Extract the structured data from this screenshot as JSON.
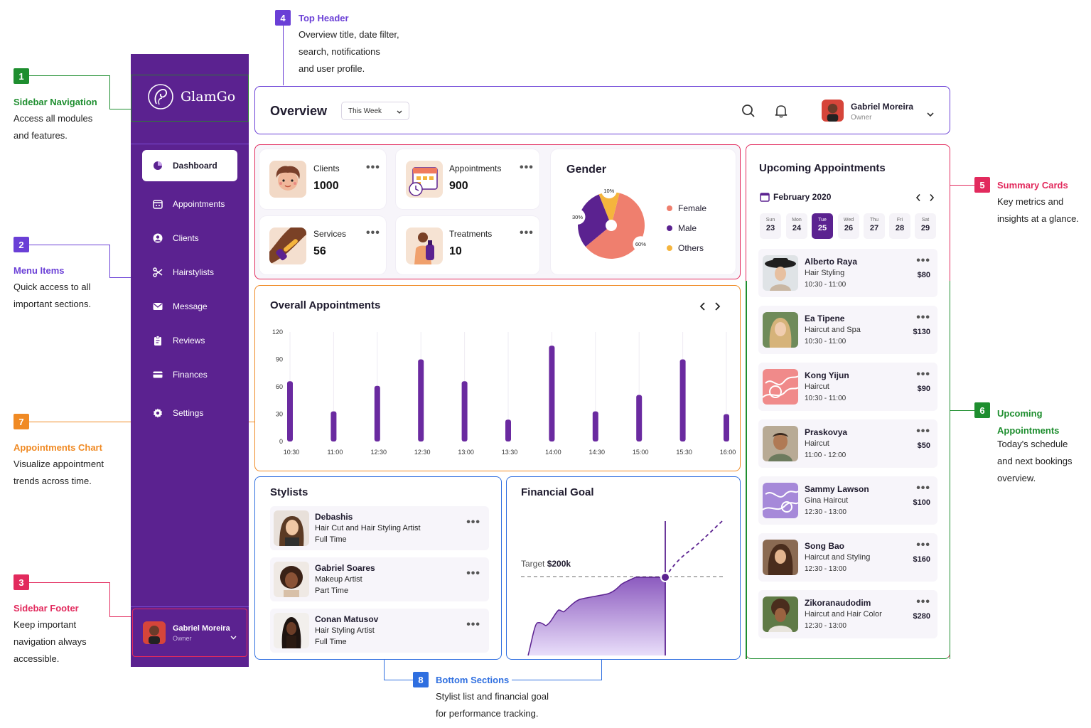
{
  "annotations": [
    {
      "num": "1",
      "title": "Sidebar Navigation",
      "lines": [
        "Access all modules",
        "and features."
      ],
      "color": "#1e8e2f"
    },
    {
      "num": "2",
      "title": "Menu Items",
      "lines": [
        "Quick access to all",
        "important sections."
      ],
      "color": "#6a3fd6"
    },
    {
      "num": "3",
      "title": "Sidebar Footer",
      "lines": [
        "Keep important",
        "navigation always",
        "accessible."
      ],
      "color": "#e22a5d"
    },
    {
      "num": "4",
      "title": "Top Header",
      "lines": [
        "Overview title, date filter,",
        "search, notifications",
        "and user profile."
      ],
      "color": "#6a3fd6"
    },
    {
      "num": "5",
      "title": "Summary Cards",
      "lines": [
        "Key metrics and",
        "insights at a glance."
      ],
      "color": "#e22a5d"
    },
    {
      "num": "6",
      "title_lines": [
        "Upcoming",
        "Appointments"
      ],
      "lines": [
        "Today's schedule",
        "and next bookings",
        "overview."
      ],
      "color": "#1e8e2f"
    },
    {
      "num": "7",
      "title": "Appointments Chart",
      "lines": [
        "Visualize appointment",
        "trends across time."
      ],
      "color": "#f08a24"
    },
    {
      "num": "8",
      "title": "Bottom Sections",
      "lines": [
        "Stylist list and financial goal",
        "for performance tracking."
      ],
      "color": "#2f6fe0"
    }
  ],
  "sidebar": {
    "brand": "GlamGo",
    "items": [
      {
        "label": "Dashboard",
        "icon": "pie-chart-icon",
        "active": true
      },
      {
        "label": "Appointments",
        "icon": "calendar-icon"
      },
      {
        "label": "Clients",
        "icon": "user-icon"
      },
      {
        "label": "Hairstylists",
        "icon": "scissors-icon"
      },
      {
        "label": "Message",
        "icon": "mail-icon"
      },
      {
        "label": "Reviews",
        "icon": "clipboard-icon"
      },
      {
        "label": "Finances",
        "icon": "card-icon"
      },
      {
        "label": "Settings",
        "icon": "gear-icon"
      }
    ],
    "footer": {
      "name": "Gabriel Moreira",
      "role": "Owner"
    }
  },
  "header": {
    "title": "Overview",
    "filter": "This Week",
    "user_name": "Gabriel Moreira",
    "user_role": "Owner"
  },
  "stats": [
    {
      "label": "Clients",
      "value": "1000"
    },
    {
      "label": "Appointments",
      "value": "900"
    },
    {
      "label": "Services",
      "value": "56"
    },
    {
      "label": "Treatments",
      "value": "10"
    }
  ],
  "gender": {
    "title": "Gender",
    "legend": [
      {
        "label": "Female",
        "color": "#ef7f6e"
      },
      {
        "label": "Male",
        "color": "#5b2290"
      },
      {
        "label": "Others",
        "color": "#f5b53d"
      }
    ],
    "slices": [
      {
        "label": "Female",
        "value": 60,
        "text": "60%",
        "color": "#ef7f6e"
      },
      {
        "label": "Male",
        "value": 30,
        "text": "30%",
        "color": "#5b2290"
      },
      {
        "label": "Others",
        "value": 10,
        "text": "10%",
        "color": "#f5b53d"
      }
    ]
  },
  "chart_data": {
    "type": "bar",
    "title": "Overall Appointments",
    "categories": [
      "10:30",
      "11:00",
      "12:30",
      "12:30",
      "13:00",
      "13:30",
      "14:00",
      "14:30",
      "15:00",
      "15:30",
      "16:00"
    ],
    "values": [
      66,
      33,
      61,
      90,
      66,
      24,
      105,
      33,
      51,
      90,
      30
    ],
    "ylim": [
      0,
      120
    ],
    "yticks": [
      "120",
      "90",
      "60",
      "30",
      "0"
    ],
    "grid": true,
    "color": "#6a2aa0"
  },
  "stylists": {
    "title": "Stylists",
    "items": [
      {
        "name": "Debashis",
        "role": "Hair Cut and Hair Styling Artist",
        "type": "Full Time"
      },
      {
        "name": "Gabriel Soares",
        "role": "Makeup Artist",
        "type": "Part Time"
      },
      {
        "name": "Conan Matusov",
        "role": "Hair Styling Artist",
        "type": "Full Time"
      }
    ]
  },
  "financial": {
    "title": "Financial Goal",
    "target_label": "Target",
    "target_value": "$200k"
  },
  "upcoming": {
    "title": "Upcoming Appointments",
    "month": "February 2020",
    "days": [
      {
        "dn": "Sun",
        "dd": "23"
      },
      {
        "dn": "Mon",
        "dd": "24"
      },
      {
        "dn": "Tue",
        "dd": "25",
        "active": true
      },
      {
        "dn": "Wed",
        "dd": "26"
      },
      {
        "dn": "Thu",
        "dd": "27"
      },
      {
        "dn": "Fri",
        "dd": "28"
      },
      {
        "dn": "Sat",
        "dd": "29"
      }
    ],
    "items": [
      {
        "name": "Alberto Raya",
        "service": "Hair Styling",
        "time": "10:30 - 11:00",
        "price": "$80"
      },
      {
        "name": "Ea Tipene",
        "service": "Haircut and Spa",
        "time": "10:30 - 11:00",
        "price": "$130"
      },
      {
        "name": "Kong Yijun",
        "service": "Haircut",
        "time": "10:30 - 11:00",
        "price": "$90"
      },
      {
        "name": "Praskovya",
        "service": "Haircut",
        "time": "11:00 - 12:00",
        "price": "$50"
      },
      {
        "name": "Sammy Lawson",
        "service": "Gina Haircut",
        "time": "12:30 - 13:00",
        "price": "$100"
      },
      {
        "name": "Song Bao",
        "service": "Haircut and Styling",
        "time": "12:30 - 13:00",
        "price": "$160"
      },
      {
        "name": "Zikoranaudodim",
        "service": "Haircut and Hair Color",
        "time": "12:30 - 13:00",
        "price": "$280"
      }
    ]
  }
}
